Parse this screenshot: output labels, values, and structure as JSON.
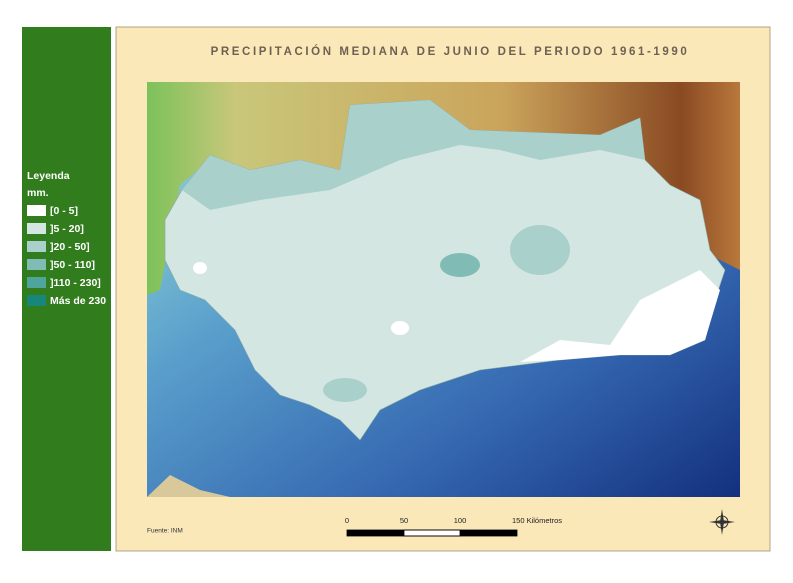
{
  "header": {
    "title": "PRECIPITACIÓN MEDIANA DE JUNIO DEL PERIODO 1961-1990"
  },
  "legend": {
    "title": "Leyenda",
    "unit": "mm.",
    "items": [
      {
        "label": "[0 - 5]",
        "color": "#ffffff"
      },
      {
        "label": "]5 - 20]",
        "color": "#d3e6e2"
      },
      {
        "label": "]20 - 50]",
        "color": "#a9d0cb"
      },
      {
        "label": "]50 - 110]",
        "color": "#80bcb5"
      },
      {
        "label": "]110 - 230]",
        "color": "#4fa59b"
      },
      {
        "label": "Más de 230",
        "color": "#16877a"
      }
    ]
  },
  "scale": {
    "labels": [
      "0",
      "50",
      "100",
      "150 Kilómetros"
    ]
  },
  "source": "Fuente: INM"
}
